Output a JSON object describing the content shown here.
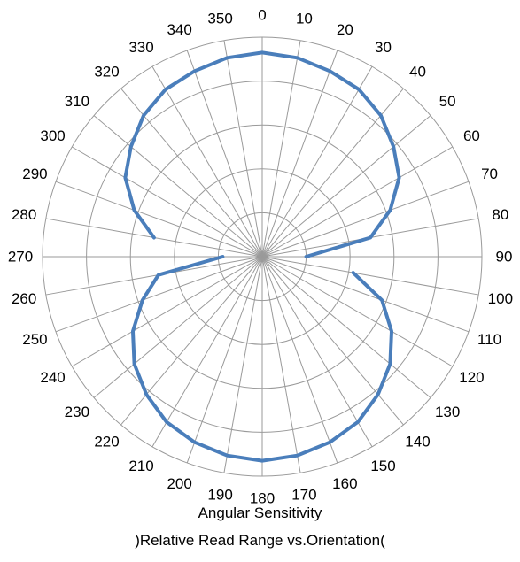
{
  "chart_data": {
    "type": "polar-line",
    "title": "Angular Sensitivity",
    "subtitle": ")Relative Read Range  vs.Orientation(",
    "angular_tick_labels": [
      "0",
      "10",
      "20",
      "30",
      "40",
      "50",
      "60",
      "70",
      "80",
      "90",
      "100",
      "110",
      "120",
      "130",
      "140",
      "150",
      "160",
      "170",
      "180",
      "190",
      "200",
      "210",
      "220",
      "230",
      "240",
      "250",
      "260",
      "270",
      "280",
      "290",
      "300",
      "310",
      "320",
      "330",
      "340",
      "350"
    ],
    "radial_range": [
      0,
      1.0
    ],
    "radial_rings": [
      0.2,
      0.4,
      0.6,
      0.8,
      1.0
    ],
    "grid": true,
    "series": [
      {
        "color": "#4a7ebb",
        "points": [
          {
            "angle": 280,
            "r": 0.5
          },
          {
            "angle": 290,
            "r": 0.62
          },
          {
            "angle": 300,
            "r": 0.72
          },
          {
            "angle": 310,
            "r": 0.78
          },
          {
            "angle": 320,
            "r": 0.84
          },
          {
            "angle": 330,
            "r": 0.88
          },
          {
            "angle": 340,
            "r": 0.9
          },
          {
            "angle": 350,
            "r": 0.92
          },
          {
            "angle": 0,
            "r": 0.93
          },
          {
            "angle": 10,
            "r": 0.92
          },
          {
            "angle": 20,
            "r": 0.9
          },
          {
            "angle": 30,
            "r": 0.88
          },
          {
            "angle": 40,
            "r": 0.84
          },
          {
            "angle": 50,
            "r": 0.78
          },
          {
            "angle": 60,
            "r": 0.72
          },
          {
            "angle": 70,
            "r": 0.62
          },
          {
            "angle": 80,
            "r": 0.5
          },
          {
            "angle": 90,
            "r": 0.2
          }
        ]
      },
      {
        "color": "#4a7ebb",
        "points": [
          {
            "angle": 100,
            "r": 0.42
          },
          {
            "angle": 110,
            "r": 0.58
          },
          {
            "angle": 120,
            "r": 0.68
          },
          {
            "angle": 130,
            "r": 0.76
          },
          {
            "angle": 140,
            "r": 0.82
          },
          {
            "angle": 150,
            "r": 0.87
          },
          {
            "angle": 160,
            "r": 0.9
          },
          {
            "angle": 170,
            "r": 0.92
          },
          {
            "angle": 180,
            "r": 0.93
          },
          {
            "angle": 190,
            "r": 0.92
          },
          {
            "angle": 200,
            "r": 0.9
          },
          {
            "angle": 210,
            "r": 0.87
          },
          {
            "angle": 220,
            "r": 0.82
          },
          {
            "angle": 230,
            "r": 0.76
          },
          {
            "angle": 240,
            "r": 0.68
          },
          {
            "angle": 250,
            "r": 0.58
          },
          {
            "angle": 260,
            "r": 0.48
          },
          {
            "angle": 270,
            "r": 0.18
          }
        ]
      }
    ]
  }
}
